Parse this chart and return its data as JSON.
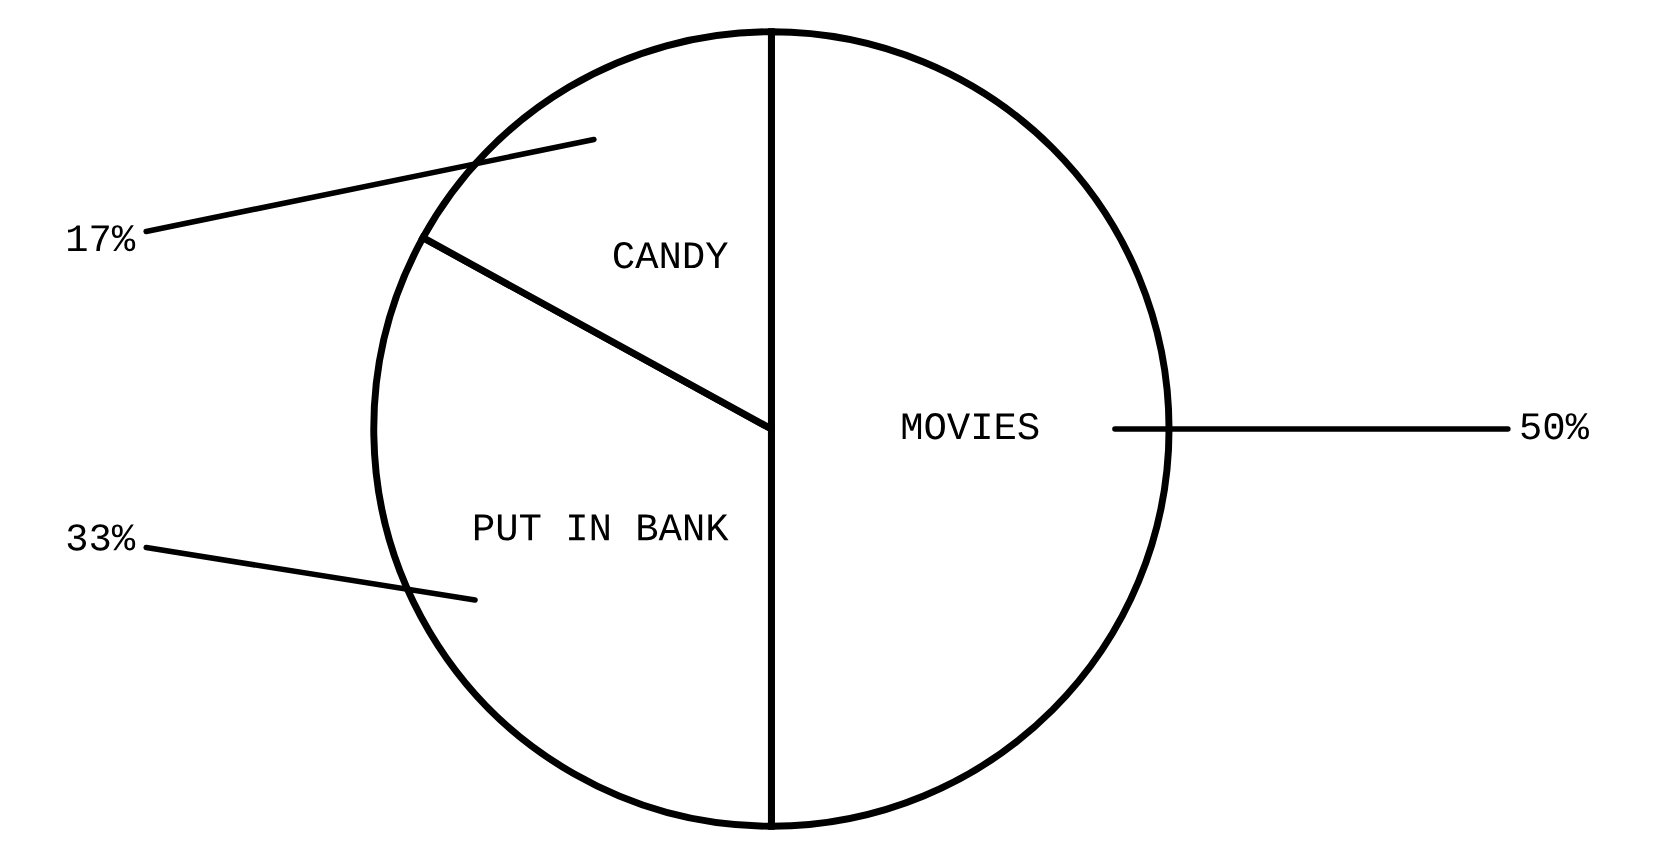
{
  "chart_data": {
    "type": "pie",
    "categories": [
      "MOVIES",
      "PUT IN BANK",
      "CANDY"
    ],
    "values": [
      50,
      33,
      17
    ],
    "value_labels": [
      "50%",
      "33%",
      "17%"
    ],
    "colors": [
      "#ffffff",
      "#ffffff",
      "#ffffff"
    ]
  }
}
